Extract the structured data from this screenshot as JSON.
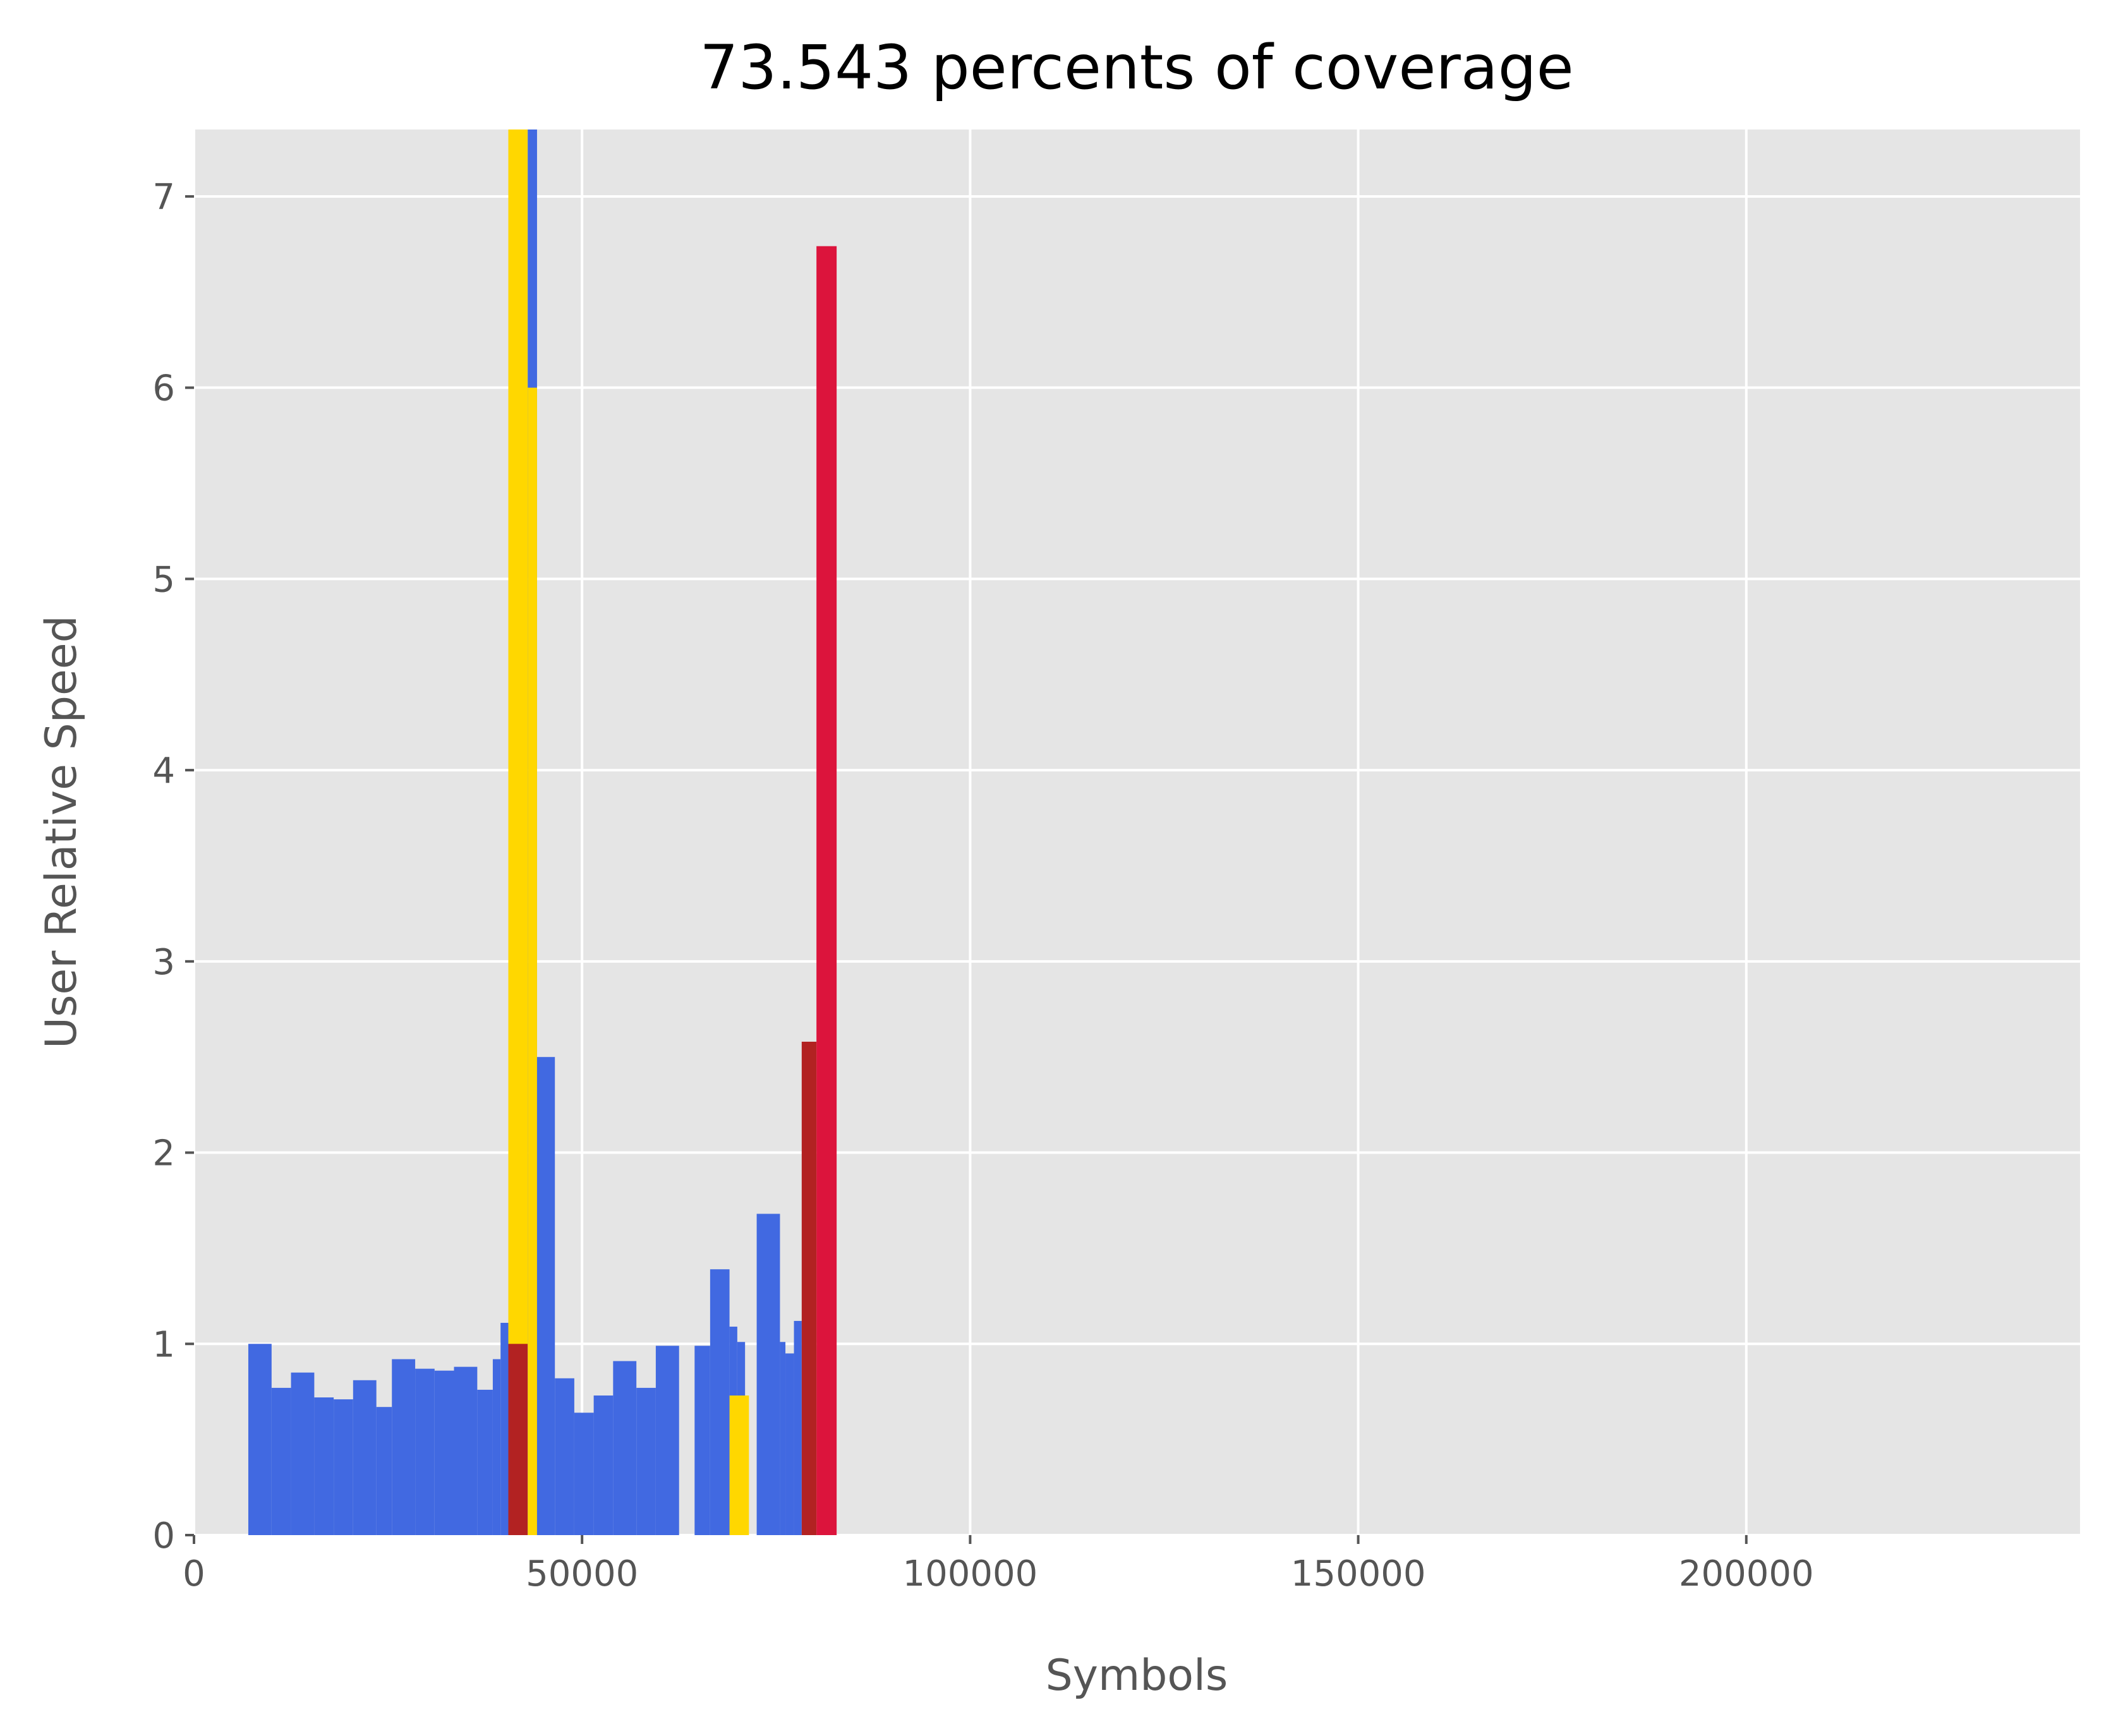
{
  "chart_data": {
    "type": "bar",
    "title": "73.543 percents of coverage",
    "xlabel": "Symbols",
    "ylabel": "User Relative Speed",
    "xlim": [
      0,
      243000
    ],
    "ylim": [
      0,
      7.35
    ],
    "xticks": [
      0,
      50000,
      100000,
      150000,
      200000
    ],
    "yticks": [
      0,
      1,
      2,
      3,
      4,
      5,
      6,
      7
    ],
    "grid": true,
    "background": "#e5e5e5",
    "colors": {
      "blue": "#4169e1",
      "yellow": "#ffd700",
      "darkred": "#b22222",
      "crimson": "#dc143c"
    },
    "bars": [
      {
        "x0": 7000,
        "x1": 10000,
        "y": 1.0,
        "color": "blue"
      },
      {
        "x0": 10000,
        "x1": 12500,
        "y": 0.77,
        "color": "blue"
      },
      {
        "x0": 12500,
        "x1": 15500,
        "y": 0.85,
        "color": "blue"
      },
      {
        "x0": 15500,
        "x1": 18000,
        "y": 0.72,
        "color": "blue"
      },
      {
        "x0": 18000,
        "x1": 20500,
        "y": 0.71,
        "color": "blue"
      },
      {
        "x0": 20500,
        "x1": 23500,
        "y": 0.81,
        "color": "blue"
      },
      {
        "x0": 23500,
        "x1": 25500,
        "y": 0.67,
        "color": "blue"
      },
      {
        "x0": 25500,
        "x1": 28500,
        "y": 0.92,
        "color": "blue"
      },
      {
        "x0": 28500,
        "x1": 31000,
        "y": 0.87,
        "color": "blue"
      },
      {
        "x0": 31000,
        "x1": 33500,
        "y": 0.86,
        "color": "blue"
      },
      {
        "x0": 33500,
        "x1": 36500,
        "y": 0.88,
        "color": "blue"
      },
      {
        "x0": 36500,
        "x1": 38500,
        "y": 0.76,
        "color": "blue"
      },
      {
        "x0": 38500,
        "x1": 39500,
        "y": 0.92,
        "color": "blue"
      },
      {
        "x0": 39500,
        "x1": 40500,
        "y": 1.11,
        "color": "blue"
      },
      {
        "x0": 40500,
        "x1": 43000,
        "y": 7.35,
        "color": "yellow"
      },
      {
        "x0": 40500,
        "x1": 43000,
        "y": 1.0,
        "color": "darkred"
      },
      {
        "x0": 43000,
        "x1": 44200,
        "y": 7.35,
        "color": "blue"
      },
      {
        "x0": 43000,
        "x1": 44200,
        "y": 6.0,
        "color": "yellow"
      },
      {
        "x0": 44200,
        "x1": 46500,
        "y": 2.5,
        "color": "blue"
      },
      {
        "x0": 46500,
        "x1": 49000,
        "y": 0.82,
        "color": "blue"
      },
      {
        "x0": 49000,
        "x1": 51500,
        "y": 0.64,
        "color": "blue"
      },
      {
        "x0": 51500,
        "x1": 54000,
        "y": 0.73,
        "color": "blue"
      },
      {
        "x0": 54000,
        "x1": 57000,
        "y": 0.91,
        "color": "blue"
      },
      {
        "x0": 57000,
        "x1": 59500,
        "y": 0.77,
        "color": "blue"
      },
      {
        "x0": 59500,
        "x1": 62500,
        "y": 0.99,
        "color": "blue"
      },
      {
        "x0": 64500,
        "x1": 66500,
        "y": 0.99,
        "color": "blue"
      },
      {
        "x0": 66500,
        "x1": 69000,
        "y": 1.39,
        "color": "blue"
      },
      {
        "x0": 69000,
        "x1": 70000,
        "y": 1.09,
        "color": "blue"
      },
      {
        "x0": 70000,
        "x1": 71000,
        "y": 1.01,
        "color": "blue"
      },
      {
        "x0": 69000,
        "x1": 71500,
        "y": 0.73,
        "color": "yellow"
      },
      {
        "x0": 72500,
        "x1": 75500,
        "y": 1.68,
        "color": "blue"
      },
      {
        "x0": 75500,
        "x1": 76200,
        "y": 1.01,
        "color": "blue"
      },
      {
        "x0": 76200,
        "x1": 77300,
        "y": 0.95,
        "color": "blue"
      },
      {
        "x0": 77300,
        "x1": 78300,
        "y": 1.12,
        "color": "blue"
      },
      {
        "x0": 78300,
        "x1": 80200,
        "y": 2.58,
        "color": "darkred"
      },
      {
        "x0": 80200,
        "x1": 82800,
        "y": 6.74,
        "color": "crimson"
      }
    ]
  }
}
